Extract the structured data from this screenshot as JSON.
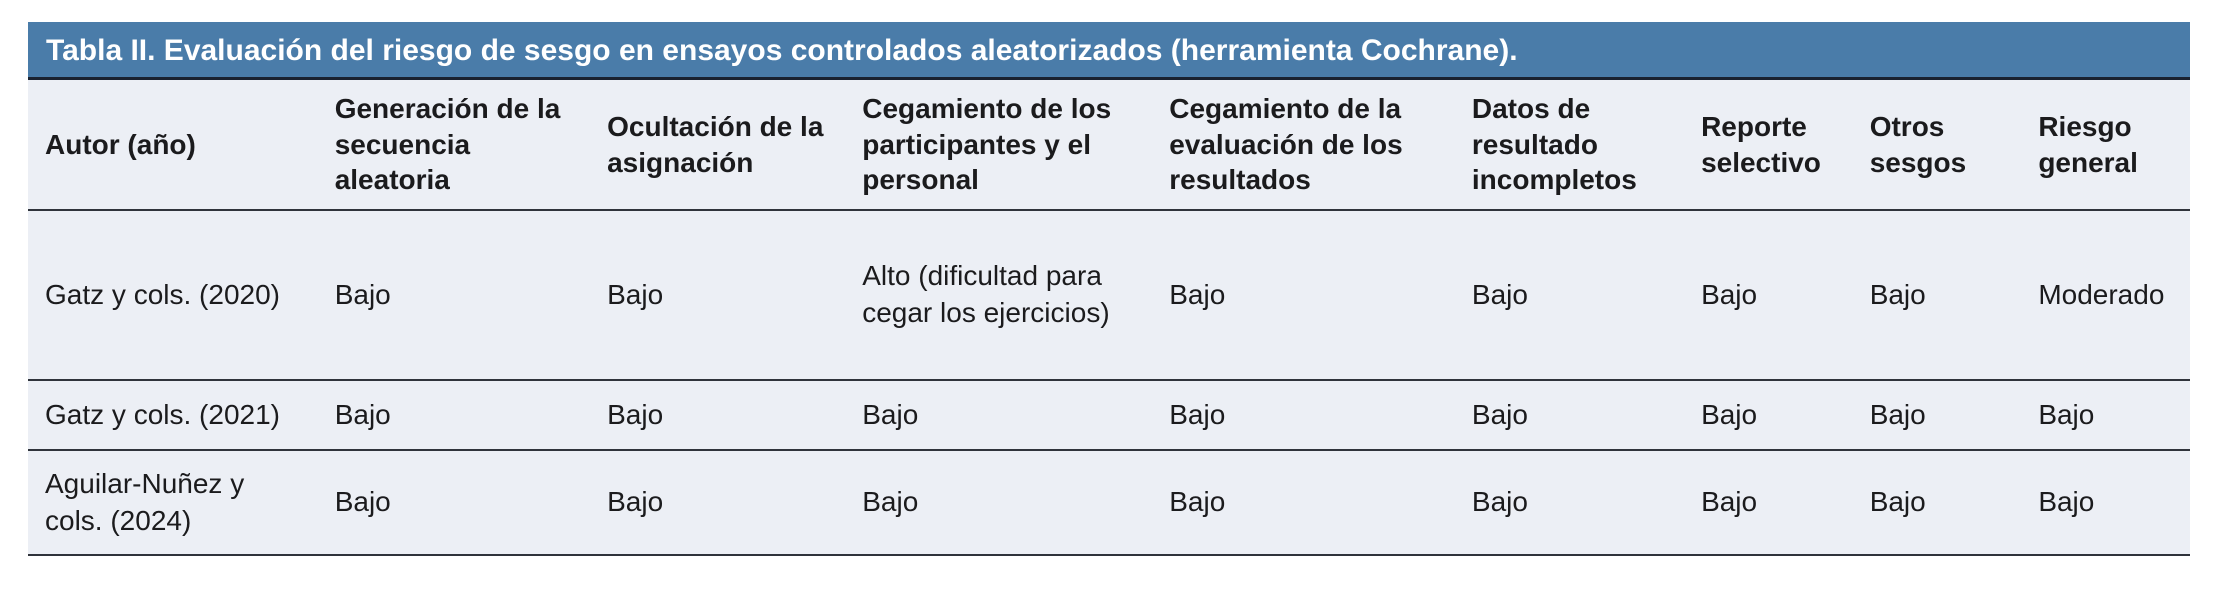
{
  "table": {
    "title": "Tabla II. Evaluación del riesgo de sesgo en ensayos controlados aleatorizados (herramienta Cochrane).",
    "columns": [
      "Autor (año)",
      "Generación de la secuencia aleatoria",
      "Ocultación de la asignación",
      "Cegamiento de los participantes y el personal",
      "Cegamiento de la evaluación de los resultados",
      "Datos de resultado incompletos",
      "Reporte selectivo",
      "Otros sesgos",
      "Riesgo general"
    ],
    "rows": [
      [
        "Gatz y cols. (2020)",
        "Bajo",
        "Bajo",
        "Alto (dificultad para cegar los ejercicios)",
        "Bajo",
        "Bajo",
        "Bajo",
        "Bajo",
        "Moderado"
      ],
      [
        "Gatz y cols. (2021)",
        "Bajo",
        "Bajo",
        "Bajo",
        "Bajo",
        "Bajo",
        "Bajo",
        "Bajo",
        "Bajo"
      ],
      [
        "Aguilar-Nuñez y cols. (2024)",
        "Bajo",
        "Bajo",
        "Bajo",
        "Bajo",
        "Bajo",
        "Bajo",
        "Bajo",
        "Bajo"
      ]
    ],
    "colors": {
      "title_bg": "#4A7CA9",
      "title_text": "#FFFFFF",
      "body_bg": "#ECEFF5",
      "row_border": "#2F333B",
      "header_border": "#1A2230",
      "text": "#1B1B1D"
    }
  }
}
